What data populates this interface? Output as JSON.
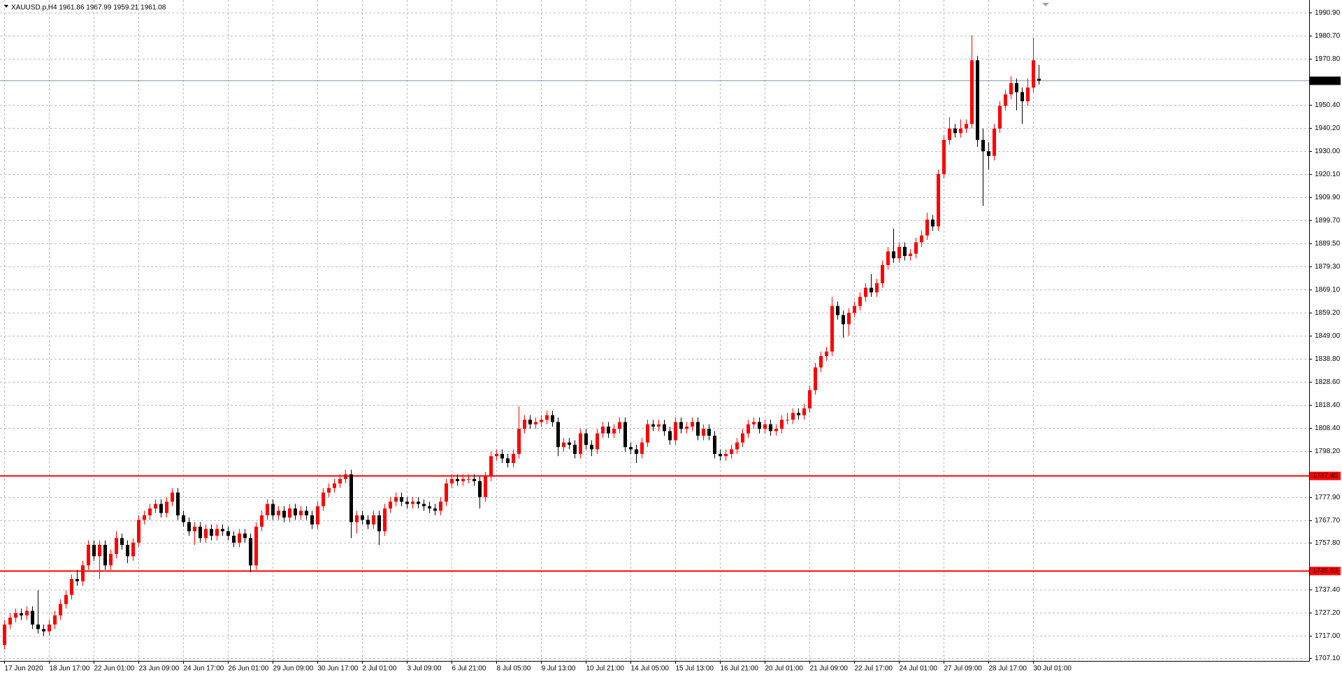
{
  "chart_data": {
    "type": "candlestick",
    "title": "XAUUSD.p,H4  1961.86 1967.99 1959.21 1961.08",
    "up_color": "#ff0000",
    "down_color": "#000000",
    "grid": true,
    "ylim": [
      1706.0,
      1996.5
    ],
    "yticks": [
      {
        "value": 1990.9,
        "label": "1990.90"
      },
      {
        "value": 1980.7,
        "label": "1980.70"
      },
      {
        "value": 1970.8,
        "label": "1970.80"
      },
      {
        "value": 1950.4,
        "label": "1950.40"
      },
      {
        "value": 1940.2,
        "label": "1940.20"
      },
      {
        "value": 1930,
        "label": "1930.00"
      },
      {
        "value": 1920.1,
        "label": "1920.10"
      },
      {
        "value": 1909.9,
        "label": "1909.90"
      },
      {
        "value": 1899.7,
        "label": "1899.70"
      },
      {
        "value": 1889.5,
        "label": "1889.50"
      },
      {
        "value": 1879.3,
        "label": "1879.30"
      },
      {
        "value": 1869.1,
        "label": "1869.10"
      },
      {
        "value": 1859.2,
        "label": "1859.20"
      },
      {
        "value": 1849,
        "label": "1849.00"
      },
      {
        "value": 1838.8,
        "label": "1838.80"
      },
      {
        "value": 1828.6,
        "label": "1828.60"
      },
      {
        "value": 1818.4,
        "label": "1818.40"
      },
      {
        "value": 1808.4,
        "label": "1808.40"
      },
      {
        "value": 1798.2,
        "label": "1798.20"
      },
      {
        "value": 1777.9,
        "label": "1777.90"
      },
      {
        "value": 1767.7,
        "label": "1767.70"
      },
      {
        "value": 1757.8,
        "label": "1757.80"
      },
      {
        "value": 1737.4,
        "label": "1737.40"
      },
      {
        "value": 1727.2,
        "label": "1727.20"
      },
      {
        "value": 1717,
        "label": "1717.00"
      },
      {
        "value": 1707.1,
        "label": "1707.10"
      }
    ],
    "hlines": [
      {
        "value": 1961.08,
        "label": "1961.08",
        "color": "#8a9bb0",
        "label_color": "#000000"
      },
      {
        "value": 1787.4,
        "label": "1787.40",
        "color": "#ff0000",
        "label_color": "#ff0000"
      },
      {
        "value": 1745.53,
        "label": "1745.53",
        "color": "#ff0000",
        "label_color": "#ff0000"
      }
    ],
    "categories": [
      "17 Jun 2020",
      null,
      null,
      null,
      null,
      null,
      null,
      null,
      "18 Jun 17:00",
      null,
      null,
      null,
      null,
      null,
      null,
      null,
      "22 Jun 01:00",
      null,
      null,
      null,
      null,
      null,
      null,
      null,
      "23 Jun 09:00",
      null,
      null,
      null,
      null,
      null,
      null,
      null,
      "24 Jun 17:00",
      null,
      null,
      null,
      null,
      null,
      null,
      null,
      "26 Jun 01:00",
      null,
      null,
      null,
      null,
      null,
      null,
      null,
      "29 Jun 09:00",
      null,
      null,
      null,
      null,
      null,
      null,
      null,
      "30 Jun 17:00",
      null,
      null,
      null,
      null,
      null,
      null,
      null,
      "2 Jul 01:00",
      null,
      null,
      null,
      null,
      null,
      null,
      null,
      "3 Jul 09:00",
      null,
      null,
      null,
      null,
      null,
      null,
      null,
      "6 Jul 21:00",
      null,
      null,
      null,
      null,
      null,
      null,
      null,
      "8 Jul 05:00",
      null,
      null,
      null,
      null,
      null,
      null,
      null,
      "9 Jul 13:00",
      null,
      null,
      null,
      null,
      null,
      null,
      null,
      "10 Jul 21:00",
      null,
      null,
      null,
      null,
      null,
      null,
      null,
      "14 Jul 05:00",
      null,
      null,
      null,
      null,
      null,
      null,
      null,
      "15 Jul 13:00",
      null,
      null,
      null,
      null,
      null,
      null,
      null,
      "16 Jul 21:00",
      null,
      null,
      null,
      null,
      null,
      null,
      null,
      "20 Jul 01:00",
      null,
      null,
      null,
      null,
      null,
      null,
      null,
      "21 Jul 09:00",
      null,
      null,
      null,
      null,
      null,
      null,
      null,
      "22 Jul 17:00",
      null,
      null,
      null,
      null,
      null,
      null,
      null,
      "24 Jul 01:00",
      null,
      null,
      null,
      null,
      null,
      null,
      null,
      "27 Jul 09:00",
      null,
      null,
      null,
      null,
      null,
      null,
      null,
      "28 Jul 17:00",
      null,
      null,
      null,
      null,
      null,
      null,
      null,
      "30 Jul 01:00",
      null
    ],
    "ohlc": [
      [
        1713,
        1724,
        1711,
        1722
      ],
      [
        1722,
        1727,
        1720,
        1725
      ],
      [
        1725,
        1729,
        1723,
        1727
      ],
      [
        1727,
        1729,
        1724,
        1726
      ],
      [
        1726,
        1730,
        1724,
        1728
      ],
      [
        1728,
        1730,
        1720,
        1722
      ],
      [
        1722,
        1737,
        1718,
        1720
      ],
      [
        1720,
        1722,
        1717,
        1719
      ],
      [
        1719,
        1724,
        1717,
        1722
      ],
      [
        1722,
        1728,
        1720,
        1726
      ],
      [
        1726,
        1733,
        1724,
        1731
      ],
      [
        1731,
        1737,
        1729,
        1735
      ],
      [
        1735,
        1744,
        1733,
        1742
      ],
      [
        1742,
        1746,
        1739,
        1741
      ],
      [
        1741,
        1750,
        1739,
        1748
      ],
      [
        1748,
        1759,
        1746,
        1757
      ],
      [
        1757,
        1759,
        1750,
        1752
      ],
      [
        1752,
        1759,
        1742,
        1757
      ],
      [
        1757,
        1759,
        1746,
        1748
      ],
      [
        1748,
        1755,
        1746,
        1753
      ],
      [
        1753,
        1763,
        1751,
        1760
      ],
      [
        1760,
        1762,
        1755,
        1757
      ],
      [
        1757,
        1759,
        1749,
        1752
      ],
      [
        1752,
        1760,
        1750,
        1758
      ],
      [
        1758,
        1770,
        1756,
        1768
      ],
      [
        1768,
        1772,
        1766,
        1770
      ],
      [
        1770,
        1775,
        1768,
        1773
      ],
      [
        1773,
        1777,
        1771,
        1775
      ],
      [
        1775,
        1777,
        1769,
        1771
      ],
      [
        1771,
        1778,
        1769,
        1776
      ],
      [
        1776,
        1782,
        1774,
        1780
      ],
      [
        1780,
        1782,
        1768,
        1770
      ],
      [
        1770,
        1772,
        1765,
        1767
      ],
      [
        1767,
        1769,
        1761,
        1763
      ],
      [
        1763,
        1767,
        1757,
        1765
      ],
      [
        1765,
        1767,
        1758,
        1760
      ],
      [
        1760,
        1766,
        1758,
        1764
      ],
      [
        1764,
        1766,
        1759,
        1761
      ],
      [
        1761,
        1766,
        1759,
        1764
      ],
      [
        1764,
        1766,
        1761,
        1763
      ],
      [
        1763,
        1765,
        1759,
        1761
      ],
      [
        1761,
        1763,
        1756,
        1758
      ],
      [
        1758,
        1764,
        1756,
        1762
      ],
      [
        1762,
        1764,
        1758,
        1760
      ],
      [
        1760,
        1762,
        1745,
        1748
      ],
      [
        1748,
        1767,
        1746,
        1765
      ],
      [
        1765,
        1772,
        1763,
        1770
      ],
      [
        1770,
        1777,
        1768,
        1775
      ],
      [
        1775,
        1777,
        1768,
        1770
      ],
      [
        1770,
        1774,
        1768,
        1772
      ],
      [
        1772,
        1774,
        1767,
        1769
      ],
      [
        1769,
        1775,
        1767,
        1773
      ],
      [
        1773,
        1775,
        1768,
        1770
      ],
      [
        1770,
        1774,
        1768,
        1772
      ],
      [
        1772,
        1774,
        1768,
        1770
      ],
      [
        1770,
        1772,
        1764,
        1766
      ],
      [
        1766,
        1776,
        1764,
        1774
      ],
      [
        1774,
        1782,
        1772,
        1780
      ],
      [
        1780,
        1784,
        1778,
        1782
      ],
      [
        1782,
        1786,
        1780,
        1784
      ],
      [
        1784,
        1788,
        1782,
        1786
      ],
      [
        1786,
        1790,
        1784,
        1788
      ],
      [
        1788,
        1790,
        1760,
        1767
      ],
      [
        1767,
        1772,
        1762,
        1770
      ],
      [
        1770,
        1772,
        1766,
        1768
      ],
      [
        1768,
        1770,
        1764,
        1766
      ],
      [
        1766,
        1772,
        1764,
        1770
      ],
      [
        1770,
        1772,
        1757,
        1763
      ],
      [
        1763,
        1775,
        1761,
        1773
      ],
      [
        1773,
        1778,
        1771,
        1776
      ],
      [
        1776,
        1780,
        1774,
        1778
      ],
      [
        1778,
        1780,
        1774,
        1776
      ],
      [
        1776,
        1778,
        1773,
        1775
      ],
      [
        1775,
        1778,
        1773,
        1776
      ],
      [
        1776,
        1778,
        1773,
        1775
      ],
      [
        1775,
        1777,
        1772,
        1774
      ],
      [
        1774,
        1776,
        1771,
        1773
      ],
      [
        1773,
        1775,
        1770,
        1772
      ],
      [
        1772,
        1778,
        1770,
        1776
      ],
      [
        1776,
        1786,
        1774,
        1784
      ],
      [
        1784,
        1788,
        1782,
        1786
      ],
      [
        1786,
        1788,
        1783,
        1785
      ],
      [
        1785,
        1788,
        1783,
        1786
      ],
      [
        1786,
        1788,
        1784,
        1786
      ],
      [
        1786,
        1788,
        1783,
        1785
      ],
      [
        1785,
        1787,
        1773,
        1778
      ],
      [
        1778,
        1789,
        1776,
        1787
      ],
      [
        1787,
        1798,
        1785,
        1796
      ],
      [
        1796,
        1799,
        1794,
        1797
      ],
      [
        1797,
        1799,
        1793,
        1795
      ],
      [
        1795,
        1797,
        1791,
        1793
      ],
      [
        1793,
        1799,
        1791,
        1797
      ],
      [
        1797,
        1818,
        1795,
        1808
      ],
      [
        1808,
        1814,
        1806,
        1812
      ],
      [
        1812,
        1814,
        1808,
        1810
      ],
      [
        1810,
        1813,
        1808,
        1811
      ],
      [
        1811,
        1814,
        1809,
        1812
      ],
      [
        1812,
        1816,
        1810,
        1814
      ],
      [
        1814,
        1816,
        1809,
        1811
      ],
      [
        1811,
        1813,
        1796,
        1800
      ],
      [
        1800,
        1804,
        1798,
        1802
      ],
      [
        1802,
        1804,
        1799,
        1801
      ],
      [
        1801,
        1803,
        1795,
        1797
      ],
      [
        1797,
        1808,
        1795,
        1806
      ],
      [
        1806,
        1808,
        1799,
        1801
      ],
      [
        1801,
        1803,
        1796,
        1799
      ],
      [
        1799,
        1808,
        1797,
        1806
      ],
      [
        1806,
        1811,
        1804,
        1809
      ],
      [
        1809,
        1811,
        1804,
        1806
      ],
      [
        1806,
        1810,
        1804,
        1808
      ],
      [
        1808,
        1813,
        1806,
        1811
      ],
      [
        1811,
        1813,
        1798,
        1800
      ],
      [
        1800,
        1802,
        1797,
        1799
      ],
      [
        1799,
        1801,
        1793,
        1797
      ],
      [
        1797,
        1804,
        1795,
        1802
      ],
      [
        1802,
        1812,
        1800,
        1810
      ],
      [
        1810,
        1812,
        1807,
        1809
      ],
      [
        1809,
        1812,
        1807,
        1810
      ],
      [
        1810,
        1812,
        1805,
        1807
      ],
      [
        1807,
        1809,
        1801,
        1803
      ],
      [
        1803,
        1813,
        1801,
        1811
      ],
      [
        1811,
        1813,
        1806,
        1808
      ],
      [
        1808,
        1811,
        1806,
        1809
      ],
      [
        1809,
        1813,
        1807,
        1811
      ],
      [
        1811,
        1813,
        1803,
        1805
      ],
      [
        1805,
        1810,
        1803,
        1808
      ],
      [
        1808,
        1810,
        1803,
        1805
      ],
      [
        1805,
        1807,
        1795,
        1797
      ],
      [
        1797,
        1799,
        1794,
        1796
      ],
      [
        1796,
        1799,
        1794,
        1797
      ],
      [
        1797,
        1801,
        1795,
        1799
      ],
      [
        1799,
        1804,
        1797,
        1802
      ],
      [
        1802,
        1808,
        1800,
        1806
      ],
      [
        1806,
        1812,
        1804,
        1810
      ],
      [
        1810,
        1813,
        1808,
        1811
      ],
      [
        1811,
        1813,
        1806,
        1808
      ],
      [
        1808,
        1812,
        1806,
        1810
      ],
      [
        1810,
        1812,
        1805,
        1807
      ],
      [
        1807,
        1810,
        1805,
        1808
      ],
      [
        1808,
        1814,
        1806,
        1812
      ],
      [
        1812,
        1815,
        1810,
        1812
      ],
      [
        1812,
        1817,
        1810,
        1815
      ],
      [
        1815,
        1817,
        1812,
        1814
      ],
      [
        1814,
        1819,
        1812,
        1817
      ],
      [
        1817,
        1827,
        1815,
        1825
      ],
      [
        1825,
        1837,
        1823,
        1835
      ],
      [
        1835,
        1842,
        1833,
        1840
      ],
      [
        1840,
        1844,
        1838,
        1842
      ],
      [
        1842,
        1866,
        1840,
        1862
      ],
      [
        1862,
        1864,
        1856,
        1858
      ],
      [
        1858,
        1860,
        1848,
        1854
      ],
      [
        1854,
        1861,
        1849,
        1859
      ],
      [
        1859,
        1864,
        1857,
        1862
      ],
      [
        1862,
        1868,
        1860,
        1866
      ],
      [
        1866,
        1872,
        1864,
        1870
      ],
      [
        1870,
        1876,
        1866,
        1868
      ],
      [
        1868,
        1874,
        1866,
        1872
      ],
      [
        1872,
        1882,
        1870,
        1880
      ],
      [
        1880,
        1888,
        1878,
        1886
      ],
      [
        1886,
        1896,
        1881,
        1883
      ],
      [
        1883,
        1890,
        1881,
        1888
      ],
      [
        1888,
        1890,
        1882,
        1884
      ],
      [
        1884,
        1887,
        1882,
        1885
      ],
      [
        1885,
        1892,
        1883,
        1890
      ],
      [
        1890,
        1895,
        1888,
        1893
      ],
      [
        1893,
        1903,
        1891,
        1900
      ],
      [
        1900,
        1902,
        1895,
        1897
      ],
      [
        1897,
        1922,
        1895,
        1920
      ],
      [
        1920,
        1937,
        1918,
        1935
      ],
      [
        1935,
        1945,
        1933,
        1940
      ],
      [
        1940,
        1942,
        1936,
        1938
      ],
      [
        1938,
        1944,
        1936,
        1940
      ],
      [
        1940,
        1944,
        1938,
        1942
      ],
      [
        1942,
        1981,
        1940,
        1970
      ],
      [
        1970,
        1972,
        1932,
        1935
      ],
      [
        1935,
        1940,
        1906,
        1930
      ],
      [
        1930,
        1934,
        1922,
        1928
      ],
      [
        1928,
        1942,
        1926,
        1940
      ],
      [
        1940,
        1952,
        1938,
        1950
      ],
      [
        1950,
        1957,
        1948,
        1955
      ],
      [
        1955,
        1963,
        1953,
        1960
      ],
      [
        1960,
        1962,
        1948,
        1956
      ],
      [
        1956,
        1958,
        1942,
        1952
      ],
      [
        1952,
        1962,
        1950,
        1958
      ],
      [
        1958,
        1980,
        1956,
        1970
      ],
      [
        1961.86,
        1967.99,
        1959.21,
        1961.08
      ]
    ]
  }
}
